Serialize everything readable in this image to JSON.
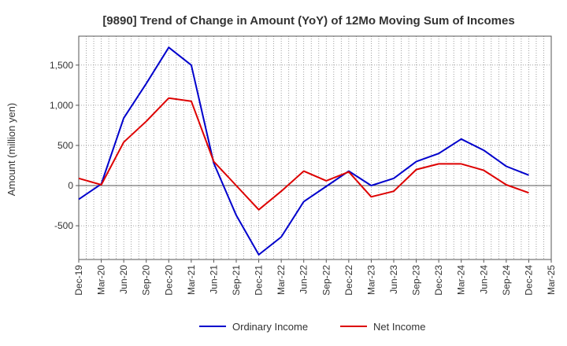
{
  "chart_data": {
    "type": "line",
    "title": "[9890]  Trend of Change in Amount (YoY) of 12Mo Moving Sum of Incomes",
    "xlabel": "",
    "ylabel": "Amount (million yen)",
    "categories": [
      "Dec-19",
      "Mar-20",
      "Jun-20",
      "Sep-20",
      "Dec-20",
      "Mar-21",
      "Jun-21",
      "Sep-21",
      "Dec-21",
      "Mar-22",
      "Jun-22",
      "Sep-22",
      "Dec-22",
      "Mar-23",
      "Jun-23",
      "Sep-23",
      "Dec-23",
      "Mar-24",
      "Jun-24",
      "Sep-24",
      "Dec-24",
      "Mar-25"
    ],
    "ylim": [
      -920,
      1860
    ],
    "yticks": [
      -500,
      0,
      500,
      1000,
      1500
    ],
    "ytick_labels": [
      "-500",
      "0",
      "500",
      "1,000",
      "1,500"
    ],
    "grid": true,
    "legend_position": "bottom-center",
    "series": [
      {
        "name": "Ordinary Income",
        "color": "#0000cc",
        "values": [
          -170,
          20,
          840,
          1270,
          1720,
          1500,
          280,
          -370,
          -860,
          -640,
          -200,
          -10,
          180,
          0,
          90,
          300,
          400,
          580,
          440,
          240,
          130,
          null
        ]
      },
      {
        "name": "Net Income",
        "color": "#dd0000",
        "values": [
          90,
          10,
          540,
          800,
          1090,
          1050,
          300,
          0,
          -300,
          -70,
          180,
          60,
          170,
          -140,
          -70,
          200,
          270,
          270,
          190,
          10,
          -90,
          null
        ]
      }
    ]
  }
}
